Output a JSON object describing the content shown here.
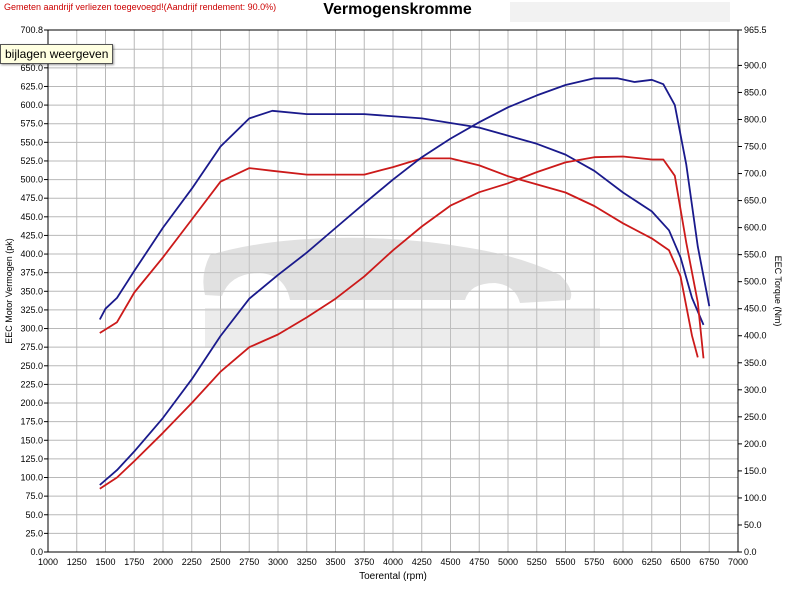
{
  "header": {
    "note": "Gemeten aandrijf verliezen toegevoegd!(Aandrijf rendement: 90.0%)",
    "title": "Vermogenskromme"
  },
  "tooltip": {
    "text": "bijlagen weergeven"
  },
  "colors": {
    "tuned": "#1a1a8c",
    "stock": "#cc1a1a",
    "grid": "#b8b8b8",
    "watermark": "#c8c8c8"
  },
  "chart_data": {
    "type": "line",
    "title": "Vermogenskromme",
    "xlabel": "Toerental (rpm)",
    "ylabel_left": "EEC Motor Vermogen (pk)",
    "ylabel_right": "EEC Torque (Nm)",
    "xlim": [
      1000,
      7000
    ],
    "ylim_left": [
      0,
      700.8
    ],
    "ylim_right": [
      0,
      965.5
    ],
    "x_ticks": [
      "1000",
      "1250",
      "1500",
      "1750",
      "2000",
      "2250",
      "2500",
      "2750",
      "3000",
      "3250",
      "3500",
      "3750",
      "4000",
      "4250",
      "4500",
      "4750",
      "5000",
      "5250",
      "5500",
      "5750",
      "6000",
      "6250",
      "6500",
      "6750",
      "7000"
    ],
    "y_left_ticks": [
      {
        "v": 0,
        "t": "0.0"
      },
      {
        "v": 25,
        "t": "25.0"
      },
      {
        "v": 50,
        "t": "50.0"
      },
      {
        "v": 75,
        "t": "75.0"
      },
      {
        "v": 100,
        "t": "100.0"
      },
      {
        "v": 125,
        "t": "125.0"
      },
      {
        "v": 150,
        "t": "150.0"
      },
      {
        "v": 175,
        "t": "175.0"
      },
      {
        "v": 200,
        "t": "200.0"
      },
      {
        "v": 225,
        "t": "225.0"
      },
      {
        "v": 250,
        "t": "250.0"
      },
      {
        "v": 275,
        "t": "275.0"
      },
      {
        "v": 300,
        "t": "300.0"
      },
      {
        "v": 325,
        "t": "325.0"
      },
      {
        "v": 350,
        "t": "350.0"
      },
      {
        "v": 375,
        "t": "375.0"
      },
      {
        "v": 400,
        "t": "400.0"
      },
      {
        "v": 425,
        "t": "425.0"
      },
      {
        "v": 450,
        "t": "450.0"
      },
      {
        "v": 475,
        "t": "475.0"
      },
      {
        "v": 500,
        "t": "500.0"
      },
      {
        "v": 525,
        "t": "525.0"
      },
      {
        "v": 550,
        "t": "550.0"
      },
      {
        "v": 575,
        "t": "575.0"
      },
      {
        "v": 600,
        "t": "600.0"
      },
      {
        "v": 625,
        "t": "625.0"
      },
      {
        "v": 650,
        "t": "650.0"
      },
      {
        "v": 675,
        "t": "675.0"
      },
      {
        "v": 700.8,
        "t": "700.8"
      }
    ],
    "y_right_ticks": [
      {
        "v": 0,
        "t": "0.0"
      },
      {
        "v": 50,
        "t": "50.0"
      },
      {
        "v": 100,
        "t": "100.0"
      },
      {
        "v": 150,
        "t": "150.0"
      },
      {
        "v": 200,
        "t": "200.0"
      },
      {
        "v": 250,
        "t": "250.0"
      },
      {
        "v": 300,
        "t": "300.0"
      },
      {
        "v": 350,
        "t": "350.0"
      },
      {
        "v": 400,
        "t": "400.0"
      },
      {
        "v": 450,
        "t": "450.0"
      },
      {
        "v": 500,
        "t": "500.0"
      },
      {
        "v": 550,
        "t": "550.0"
      },
      {
        "v": 600,
        "t": "600.0"
      },
      {
        "v": 650,
        "t": "650.0"
      },
      {
        "v": 700,
        "t": "700.0"
      },
      {
        "v": 750,
        "t": "750.0"
      },
      {
        "v": 800,
        "t": "800.0"
      },
      {
        "v": 850,
        "t": "850.0"
      },
      {
        "v": 900,
        "t": "900.0"
      },
      {
        "v": 965.5,
        "t": "965.5"
      }
    ],
    "grid": true,
    "series": [
      {
        "color_key": "tuned",
        "axis": "right",
        "points": [
          [
            1450,
            430
          ],
          [
            1500,
            450
          ],
          [
            1600,
            470
          ],
          [
            1750,
            520
          ],
          [
            2000,
            600
          ],
          [
            2250,
            672
          ],
          [
            2500,
            750
          ],
          [
            2750,
            802
          ],
          [
            2950,
            816
          ],
          [
            3250,
            810
          ],
          [
            3750,
            810
          ],
          [
            4250,
            802
          ],
          [
            4750,
            785
          ],
          [
            5250,
            755
          ],
          [
            5500,
            735
          ],
          [
            5750,
            705
          ],
          [
            6000,
            665
          ],
          [
            6250,
            630
          ],
          [
            6400,
            595
          ],
          [
            6500,
            545
          ],
          [
            6600,
            470
          ],
          [
            6700,
            420
          ]
        ]
      },
      {
        "color_key": "stock",
        "axis": "right",
        "points": [
          [
            1450,
            405
          ],
          [
            1600,
            425
          ],
          [
            1750,
            480
          ],
          [
            2000,
            545
          ],
          [
            2250,
            615
          ],
          [
            2500,
            685
          ],
          [
            2750,
            710
          ],
          [
            2950,
            705
          ],
          [
            3250,
            698
          ],
          [
            3750,
            698
          ],
          [
            4000,
            712
          ],
          [
            4250,
            728
          ],
          [
            4500,
            728
          ],
          [
            4750,
            715
          ],
          [
            5000,
            695
          ],
          [
            5250,
            680
          ],
          [
            5500,
            665
          ],
          [
            5750,
            640
          ],
          [
            6000,
            608
          ],
          [
            6250,
            580
          ],
          [
            6400,
            558
          ],
          [
            6500,
            510
          ],
          [
            6600,
            400
          ],
          [
            6650,
            360
          ]
        ]
      },
      {
        "color_key": "tuned",
        "axis": "left",
        "points": [
          [
            1450,
            90
          ],
          [
            1600,
            110
          ],
          [
            1750,
            135
          ],
          [
            2000,
            180
          ],
          [
            2250,
            232
          ],
          [
            2500,
            290
          ],
          [
            2750,
            340
          ],
          [
            3000,
            372
          ],
          [
            3250,
            402
          ],
          [
            3500,
            435
          ],
          [
            3750,
            468
          ],
          [
            4000,
            500
          ],
          [
            4250,
            530
          ],
          [
            4500,
            555
          ],
          [
            4750,
            577
          ],
          [
            5000,
            597
          ],
          [
            5250,
            613
          ],
          [
            5500,
            627
          ],
          [
            5750,
            636
          ],
          [
            5950,
            636
          ],
          [
            6100,
            631
          ],
          [
            6250,
            634
          ],
          [
            6350,
            628
          ],
          [
            6450,
            600
          ],
          [
            6550,
            520
          ],
          [
            6650,
            410
          ],
          [
            6750,
            330
          ]
        ]
      },
      {
        "color_key": "stock",
        "axis": "left",
        "points": [
          [
            1450,
            85
          ],
          [
            1600,
            100
          ],
          [
            1750,
            122
          ],
          [
            2000,
            160
          ],
          [
            2250,
            200
          ],
          [
            2500,
            242
          ],
          [
            2750,
            275
          ],
          [
            3000,
            292
          ],
          [
            3250,
            315
          ],
          [
            3500,
            340
          ],
          [
            3750,
            370
          ],
          [
            4000,
            405
          ],
          [
            4250,
            437
          ],
          [
            4500,
            465
          ],
          [
            4750,
            483
          ],
          [
            5000,
            495
          ],
          [
            5250,
            510
          ],
          [
            5500,
            523
          ],
          [
            5750,
            530
          ],
          [
            6000,
            531
          ],
          [
            6250,
            527
          ],
          [
            6350,
            527
          ],
          [
            6450,
            505
          ],
          [
            6550,
            415
          ],
          [
            6650,
            335
          ],
          [
            6700,
            260
          ]
        ]
      }
    ]
  }
}
